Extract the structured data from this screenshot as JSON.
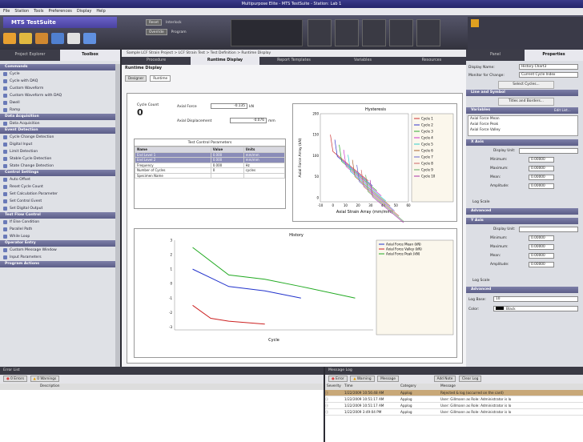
{
  "window": {
    "title": "Multipurpose Elite - MTS TestSuite - Station: Lab 1"
  },
  "menu": [
    "File",
    "Station",
    "Tools",
    "Preferences",
    "Display",
    "Help"
  ],
  "brand": {
    "name": "MTS TestSuite"
  },
  "station_controls": {
    "reset": "Reset",
    "interlock": "Interlock",
    "override": "Override",
    "program": "Program"
  },
  "explorer_tabs": {
    "project_explorer": "Project Explorer",
    "toolbox": "Toolbox"
  },
  "toolbox": [
    {
      "section": "Commands",
      "items": [
        "Cycle",
        "Cycle with DAQ",
        "Custom Waveform",
        "Custom Waveform with DAQ",
        "Dwell",
        "Ramp"
      ]
    },
    {
      "section": "Data Acquisition",
      "items": [
        "Data Acquisition"
      ]
    },
    {
      "section": "Event Detection",
      "items": [
        "Cycle Change Detection",
        "Digital Input",
        "Limit Detection",
        "Stable Cycle Detection",
        "State Change Detection"
      ]
    },
    {
      "section": "Control Settings",
      "items": [
        "Auto Offset",
        "Reset Cycle Count",
        "Set Calculation Parameter",
        "Set Control Event",
        "Set Digital Output"
      ]
    },
    {
      "section": "Test Flow Control",
      "items": [
        "If Else Condition",
        "Parallel Path",
        "While Loop"
      ]
    },
    {
      "section": "Operator Entry",
      "items": [
        "Custom Message Window",
        "Input Parameters"
      ]
    },
    {
      "section": "Program Actions",
      "items": []
    }
  ],
  "breadcrumb": [
    "Sample LCF Strain Project",
    "LCF Strain Test",
    "Test Definition",
    "Runtime Display"
  ],
  "main_tabs": [
    "Procedure",
    "Runtime Display",
    "Report Templates",
    "Variables",
    "Resources"
  ],
  "runtime_title": "Runtime Display",
  "subtabs": [
    "Designer",
    "Runtime"
  ],
  "cycle_count": {
    "label": "Cycle Count",
    "value": "0"
  },
  "axial_force": {
    "label": "Axial Force",
    "value": "-0.135",
    "unit": "kN"
  },
  "axial_disp": {
    "label": "Axial Displacement",
    "value": "-0.076",
    "unit": "mm"
  },
  "params_table": {
    "title": "Test Control Parameters",
    "headers": [
      "Name",
      "Value",
      "Units"
    ],
    "rows": [
      [
        "End Level 1",
        "0.000",
        "mm/mm"
      ],
      [
        "End Level 2",
        "0.000",
        "mm/mm"
      ],
      [
        "Frequency",
        "0.000",
        "Hz"
      ],
      [
        "Number of Cycles",
        "0",
        "cycles"
      ],
      [
        "Specimen Name",
        "",
        ""
      ]
    ]
  },
  "chart_data": [
    {
      "type": "line",
      "title": "Hysteresis",
      "xlabel": "Axial Strain Array (mm/mm)",
      "ylabel": "Axial Force Array (kN)",
      "xlim": [
        -10,
        60
      ],
      "ylim": [
        -10,
        200
      ],
      "legend_position": "right",
      "series": [
        {
          "name": "Cycle 1"
        },
        {
          "name": "Cycle 2"
        },
        {
          "name": "Cycle 3"
        },
        {
          "name": "Cycle 4"
        },
        {
          "name": "Cycle 5"
        },
        {
          "name": "Cycle 6"
        },
        {
          "name": "Cycle 7"
        },
        {
          "name": "Cycle 8"
        },
        {
          "name": "Cycle 9"
        },
        {
          "name": "Cycle 10"
        }
      ]
    },
    {
      "type": "line",
      "title": "History",
      "xlabel": "Cycle",
      "ylabel": "",
      "legend_position": "top-right",
      "series": [
        {
          "name": "Axial Force Mean (kN)",
          "color": "#2233cc",
          "x": [
            1,
            2,
            3,
            4
          ],
          "y": [
            1.0,
            -0.2,
            -0.5,
            -1.0
          ]
        },
        {
          "name": "Axial Force Valley (kN)",
          "color": "#cc2222",
          "x": [
            1,
            1.5,
            2,
            3
          ],
          "y": [
            -1.5,
            -2.4,
            -2.6,
            -2.8
          ]
        },
        {
          "name": "Axial Force Peak (kN)",
          "color": "#22aa22",
          "x": [
            1,
            2,
            3,
            4,
            5.5
          ],
          "y": [
            2.5,
            0.6,
            0.3,
            -0.2,
            -1.0
          ]
        }
      ]
    }
  ],
  "properties": {
    "tabs": [
      "Panel",
      "Properties"
    ],
    "display_name_label": "Display Name:",
    "display_name": "History Chart3",
    "monitor_label": "Monitor for Change:",
    "monitor": "Current Cycle Index",
    "select_cycles": "Select Cycles...",
    "line_symbol": "Line and Symbol",
    "titles": "Titles and Borders...",
    "variables": "Variables",
    "edit_list": "Edit List...",
    "variable_list": [
      "Axial Force Mean",
      "Axial Force Peak",
      "Axial Force Valley"
    ],
    "x_axis": "X Axis",
    "y_axis": "Y Axis",
    "advanced": "Advanced",
    "display_unit": "Display Unit:",
    "minimum": "Minimum:",
    "maximum": "Maximum:",
    "mean": "Mean:",
    "amplitude": "Amplitude:",
    "log_scale": "Log Scale",
    "log_base_label": "Log Base:",
    "log_base": "10",
    "color_label": "Color:",
    "color": "Black"
  },
  "error_list": {
    "title": "Error List",
    "errors": "0 Errors",
    "warnings": "0 Warnings",
    "col": "Description"
  },
  "message_log": {
    "title": "Message Log",
    "error": "Error",
    "warning": "Warning",
    "message": "Message",
    "add_note": "Add Note",
    "clear_log": "Clear Log",
    "headers": [
      "Severity",
      "Time",
      "Category",
      "Message"
    ],
    "rows": [
      [
        "1/22/2009 10:56:48 AM",
        "Applog",
        "Rejected & log (occurred on the card)"
      ],
      [
        "1/22/2009 10:51:17 AM",
        "Applog",
        "User: Gillmann as Role: Administrator is lo"
      ],
      [
        "1/22/2009 10:51:17 AM",
        "Applog",
        "User: Gillmann as Role: Administrator is lo"
      ],
      [
        "1/22/2009 3:49:04 PM",
        "Applog",
        "User: Gillmann as Role: Administrator is lo"
      ]
    ]
  }
}
